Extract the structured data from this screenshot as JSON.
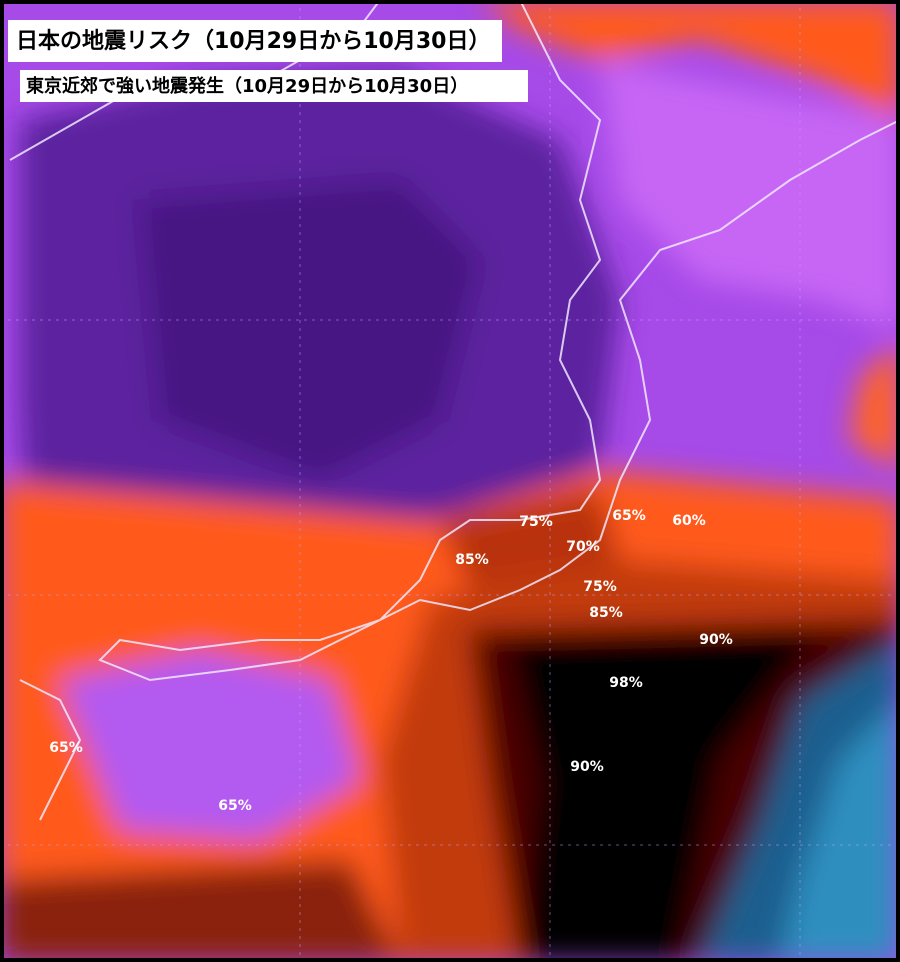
{
  "header": {
    "title": "日本の地震リスク（10月29日から10月30日）",
    "subtitle": "東京近郊で強い地震発生（10月29日から10月30日）"
  },
  "labels": [
    "75%",
    "65%",
    "60%",
    "85%",
    "70%",
    "75%",
    "85%",
    "90%",
    "98%",
    "90%",
    "65%",
    "65%"
  ]
}
